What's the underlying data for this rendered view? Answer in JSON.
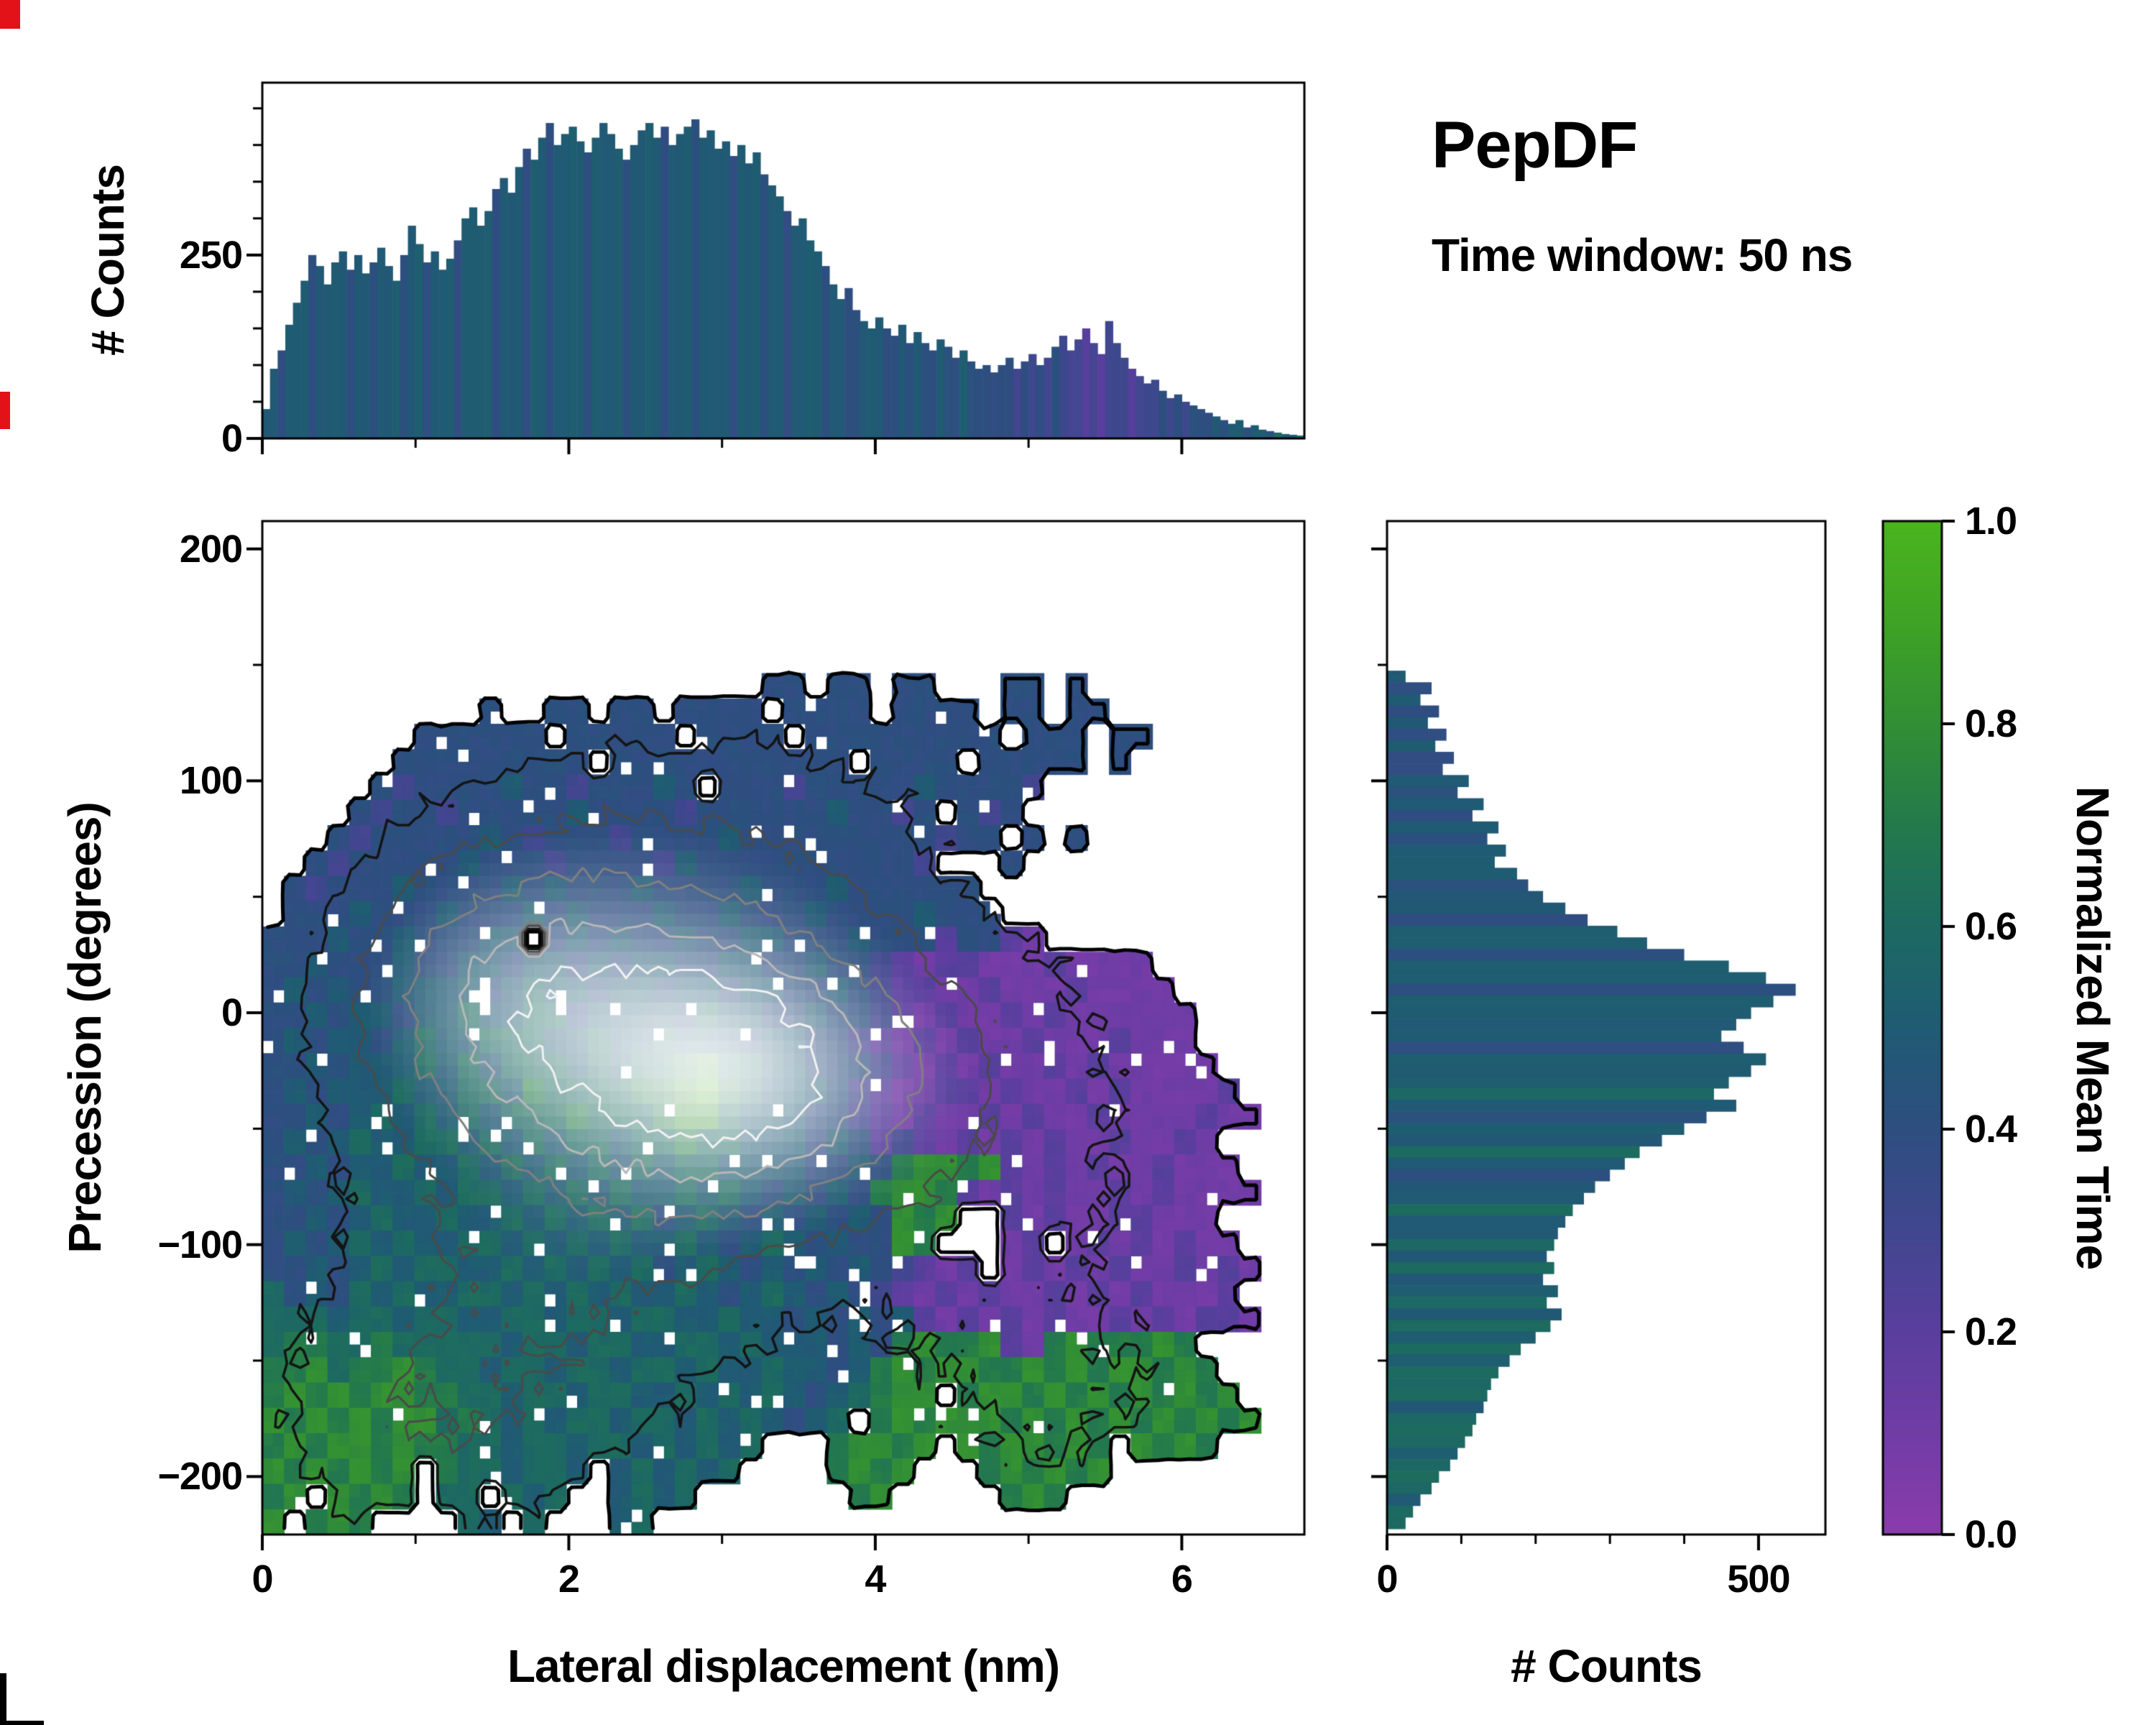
{
  "annotations": {
    "title": "PepDF",
    "subtitle": "Time window: 50 ns"
  },
  "figure": {
    "background": "#ffffff",
    "axis_color": "#000000"
  },
  "chart_data": [
    {
      "id": "top-hist",
      "type": "bar",
      "title": "",
      "xlabel": "",
      "ylabel": "# Counts",
      "xlim": [
        0,
        6.8
      ],
      "ylim": [
        0,
        485
      ],
      "bin_width": 0.05,
      "grid": false,
      "counts": [
        40,
        95,
        120,
        155,
        185,
        215,
        250,
        235,
        210,
        240,
        255,
        230,
        250,
        225,
        240,
        260,
        235,
        215,
        250,
        290,
        265,
        240,
        255,
        230,
        245,
        270,
        300,
        315,
        290,
        310,
        340,
        355,
        335,
        370,
        395,
        380,
        410,
        430,
        400,
        415,
        425,
        405,
        390,
        410,
        430,
        415,
        395,
        380,
        400,
        420,
        430,
        410,
        425,
        400,
        415,
        425,
        435,
        410,
        420,
        395,
        405,
        385,
        400,
        375,
        390,
        360,
        345,
        330,
        310,
        290,
        300,
        270,
        255,
        235,
        210,
        190,
        205,
        175,
        160,
        150,
        165,
        150,
        140,
        155,
        130,
        145,
        130,
        120,
        135,
        125,
        110,
        120,
        105,
        95,
        100,
        90,
        100,
        110,
        95,
        105,
        115,
        100,
        110,
        125,
        140,
        120,
        135,
        150,
        130,
        115,
        160,
        130,
        110,
        95,
        85,
        75,
        80,
        65,
        55,
        60,
        50,
        45,
        40,
        35,
        30,
        25,
        20,
        25,
        15,
        18,
        12,
        10,
        8,
        6,
        5,
        4
      ],
      "mean_time_q": [
        "55455545555455455545",
        "54555455554555455455",
        "55455554555545554555",
        "54555455455554554455",
        "5445454454454444",
        "4434343433323233",
        "3233343434445455",
        "45546556"
      ],
      "yticks": [
        {
          "v": 0,
          "label": "0"
        },
        {
          "v": 250,
          "label": "250"
        }
      ],
      "yminor": [
        50,
        100,
        150,
        200,
        300,
        350,
        400,
        450
      ],
      "xmajor_marks": [
        0,
        2,
        4,
        6
      ],
      "xminor_marks": [
        1,
        3,
        5
      ]
    },
    {
      "id": "main-heatmap",
      "type": "heatmap",
      "xlabel": "Lateral displacement (nm)",
      "ylabel": "Precession (degrees)",
      "xlim": [
        0,
        6.8
      ],
      "ylim": [
        -225,
        212
      ],
      "grid_cols": 48,
      "grid_rows": 40,
      "value_encoding": "digit/10 = normalized mean time (0-0.9), '.' = no data; rows top-to-bottom",
      "mean_grid": [
        [
          "........",
          "........",
          "........",
          "........",
          "........",
          "........"
        ],
        [
          "........",
          "........",
          "........",
          "........",
          "........",
          "........"
        ],
        [
          "........",
          "........",
          "........",
          "........",
          "........",
          "........"
        ],
        [
          "........",
          "........",
          "........",
          "........",
          "........",
          "........"
        ],
        [
          "........",
          "........",
          "........",
          "........",
          "........",
          "........"
        ],
        [
          "........",
          "........",
          "........",
          "........",
          "........",
          "........"
        ],
        [
          "........",
          "........",
          ".......4",
          "4.44.44.",
          "..44.4..",
          "........"
        ],
        [
          "........",
          "..4..44.",
          "44.4444.",
          "4444.444",
          "4.44.44.",
          "........"
        ],
        [
          ".......4",
          "44444.44",
          "444.4444",
          ".4444444",
          "44.444.4",
          "4......."
        ],
        [
          "......44",
          "4444444.",
          "44444444",
          "444.4444",
          ".44444.4",
          "........"
        ],
        [
          ".....434",
          "44454434",
          "4454.444",
          "34444454",
          "4443....",
          "........"
        ],
        [
          "....4344",
          "34444454",
          "44434444",
          "4454434.",
          "434.....",
          "........"
        ],
        [
          "...43444",
          "44543444",
          "34444544",
          "44444443",
          "44.4.4..",
          "........"
        ],
        [
          "..434444",
          "45444344",
          "44354444",
          "4444443.",
          "..4.....",
          "........"
        ],
        [
          ".4344454",
          "44454544",
          "45444454",
          "44544444",
          "4.......",
          "........"
        ],
        [
          ".4445444",
          "54445454",
          "44544544",
          "45444454",
          "44......",
          "........"
        ],
        [
          "44454454",
          "4455.454",
          "54454455",
          "44454442",
          "4421....",
          "........"
        ],
        [
          "44544454",
          "45545545",
          "45544554",
          "45443212",
          "21112111",
          "1......."
        ],
        [
          "45454455",
          "55456554",
          "55455455",
          "44543221",
          "12111211",
          "11......"
        ],
        [
          "44545545",
          "56556645",
          "55546554",
          "45443212",
          "11212111",
          "111....."
        ],
        [
          "45455456",
          "55666556",
          "55655545",
          "54432121",
          "21121112",
          "111....."
        ],
        [
          "44545556",
          "56566656",
          "56678665",
          "54443212",
          "12112121",
          "1111...."
        ],
        [
          "45455565",
          "56657666",
          "67789765",
          "55432112",
          "21211212",
          "11112..."
        ],
        [
          "44545656",
          "56566676",
          "66788655",
          "54432121",
          "12121121",
          "111211.."
        ],
        [
          "45456556",
          "65656566",
          "56676655",
          "54542321",
          "21212112",
          "1121...."
        ],
        [
          "44545565",
          "56565656",
          "56566555",
          "54454788",
          "78212121",
          "12111..."
        ],
        [
          "45456556",
          "56656565",
          "65565654",
          "54547887",
          "21212112",
          "121111.."
        ],
        [
          "44545655",
          "65565656",
          "56456545",
          "45454878",
          "..212112",
          "2111...."
        ],
        [
          "45456565",
          "56656565",
          "65565456",
          "5454487.",
          "..12.121",
          "21211..."
        ],
        [
          "44545656",
          "65565656",
          "56456545",
          "45454321",
          "2.121212",
          "112121.."
        ],
        [
          "64546565",
          "56656565",
          "65565456",
          "54543212",
          "12112121",
          "21112..."
        ],
        [
          "66656656",
          "65566566",
          "56655655",
          "45454521",
          "21212112",
          "121221.."
        ],
        [
          "67766766",
          "66656656",
          "65566565",
          "55454787",
          "78217877",
          "787....."
        ],
        [
          "77867787",
          "66566566",
          "56656556",
          "55457878",
          "87787878",
          "8787...."
        ],
        [
          "78787887",
          "76656656",
          "65565656",
          "5456788.",
          "78878787",
          "87878..."
        ],
        [
          "87878788",
          "67656566",
          "56656565",
          "456.7878",
          "88787878",
          "787878.."
        ],
        [
          "78788787",
          "76656656",
          "6565656.",
          "..78878.",
          "8788787.",
          "8787...."
        ],
        [
          "8787878.",
          "7665665.",
          "565656..",
          "..7878..",
          ".787878.",
          "........"
        ],
        [
          "78.8787.",
          "66.656..",
          "5656....",
          "...78...",
          "..787...",
          "........"
        ],
        [
          "8.787...",
          ".65.6...",
          "56......",
          "........",
          "........",
          "........"
        ]
      ],
      "density_model": {
        "note": "count density shown by contour lines and pale shading (high counts = lighter)",
        "gaussians": [
          {
            "x": 2.6,
            "y": -10,
            "sx": 1.1,
            "sy": 55,
            "a": 1.0
          },
          {
            "x": 1.4,
            "y": 10,
            "sx": 0.8,
            "sy": 50,
            "a": 0.8
          },
          {
            "x": 3.3,
            "y": -30,
            "sx": 0.8,
            "sy": 45,
            "a": 0.85
          },
          {
            "x": 2.0,
            "y": -120,
            "sx": 1.2,
            "sy": 60,
            "a": 0.5
          },
          {
            "x": 3.0,
            "y": 90,
            "sx": 1.3,
            "sy": 45,
            "a": 0.42
          },
          {
            "x": 5.0,
            "y": -40,
            "sx": 0.9,
            "sy": 70,
            "a": 0.45
          },
          {
            "x": 1.0,
            "y": -180,
            "sx": 0.9,
            "sy": 50,
            "a": 0.5
          },
          {
            "x": 5.2,
            "y": -170,
            "sx": 0.9,
            "sy": 45,
            "a": 0.4
          }
        ]
      },
      "contour_levels": [
        {
          "v": 0.06,
          "color": "#000000",
          "w": 5
        },
        {
          "v": 0.22,
          "color": "#141414",
          "w": 3.5
        },
        {
          "v": 0.38,
          "color": "#4a4a4a",
          "w": 3
        },
        {
          "v": 0.55,
          "color": "#808080",
          "w": 3
        },
        {
          "v": 0.7,
          "color": "#b8b8b8",
          "w": 3
        },
        {
          "v": 0.84,
          "color": "#f2f2f2",
          "w": 3
        }
      ],
      "xticks": [
        {
          "v": 0,
          "label": "0"
        },
        {
          "v": 2,
          "label": "2"
        },
        {
          "v": 4,
          "label": "4"
        },
        {
          "v": 6,
          "label": "6"
        }
      ],
      "yticks": [
        {
          "v": 200,
          "label": "200"
        },
        {
          "v": 100,
          "label": "100"
        },
        {
          "v": 0,
          "label": "0"
        },
        {
          "v": -100,
          "label": "−100"
        },
        {
          "v": -200,
          "label": "−200"
        }
      ],
      "xminor": [
        1,
        3,
        5
      ],
      "yminor": [
        150,
        50,
        -50,
        -150
      ]
    },
    {
      "id": "right-hist",
      "type": "bar-horizontal",
      "xlabel": "# Counts",
      "ylabel": "",
      "xlim": [
        0,
        590
      ],
      "ylim": [
        -225,
        212
      ],
      "bin_width_deg": 5,
      "y_start_center": 210,
      "counts": [
        0,
        0,
        0,
        0,
        0,
        0,
        0,
        0,
        0,
        0,
        0,
        0,
        0,
        25,
        60,
        45,
        70,
        55,
        80,
        65,
        90,
        75,
        110,
        95,
        130,
        115,
        150,
        135,
        160,
        145,
        175,
        190,
        210,
        240,
        270,
        310,
        350,
        400,
        460,
        510,
        550,
        520,
        490,
        470,
        450,
        480,
        510,
        490,
        460,
        440,
        470,
        430,
        400,
        370,
        340,
        320,
        300,
        280,
        265,
        250,
        240,
        230,
        225,
        215,
        225,
        210,
        230,
        215,
        235,
        220,
        200,
        180,
        165,
        150,
        140,
        135,
        130,
        120,
        115,
        105,
        95,
        85,
        70,
        60,
        45,
        35,
        25
      ],
      "mean_time_q": [
        "5555555555555",
        "54545454",
        "45454545",
        "55455455455455",
        "55455565455654",
        "55655656556565",
        "6566656665666566"
      ],
      "xticks": [
        {
          "v": 0,
          "label": "0"
        },
        {
          "v": 500,
          "label": "500"
        }
      ],
      "xminor": [
        100,
        200,
        300,
        400
      ],
      "ymajor_marks": [
        200,
        100,
        0,
        -100,
        -200
      ],
      "yminor_marks": [
        150,
        50,
        -50,
        -150
      ]
    },
    {
      "id": "colorbar",
      "type": "colorbar",
      "label": "Normalized Mean Time",
      "range": [
        0,
        1
      ],
      "ticks": [
        {
          "v": 1,
          "label": "1.0"
        },
        {
          "v": 0.8,
          "label": "0.8"
        },
        {
          "v": 0.6,
          "label": "0.6"
        },
        {
          "v": 0.4,
          "label": "0.4"
        },
        {
          "v": 0.2,
          "label": "0.2"
        },
        {
          "v": 0,
          "label": "0.0"
        }
      ],
      "stops": [
        [
          0.0,
          "#8a3cab"
        ],
        [
          0.1,
          "#713da6"
        ],
        [
          0.2,
          "#5a3f9e"
        ],
        [
          0.3,
          "#41478f"
        ],
        [
          0.4,
          "#2e4f80"
        ],
        [
          0.5,
          "#205b74"
        ],
        [
          0.6,
          "#1d6a62"
        ],
        [
          0.7,
          "#247a4c"
        ],
        [
          0.8,
          "#338f35"
        ],
        [
          0.9,
          "#3fa326"
        ],
        [
          1.0,
          "#4ab51e"
        ]
      ]
    }
  ]
}
